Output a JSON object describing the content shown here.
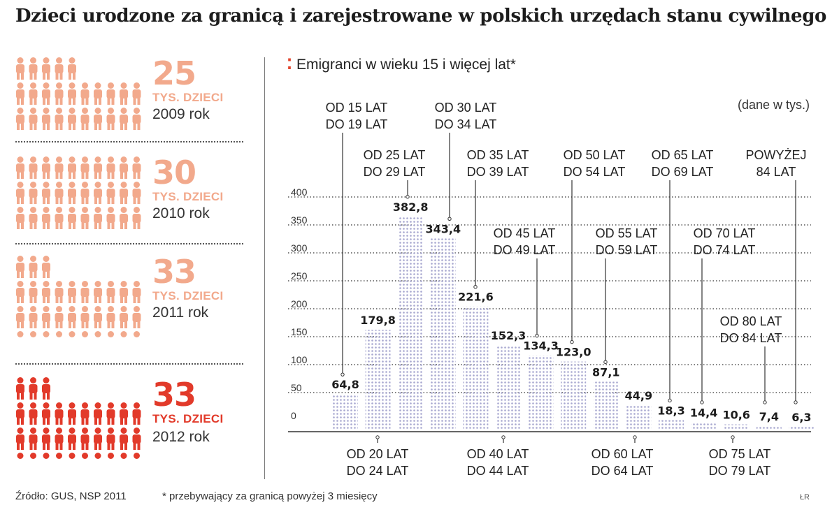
{
  "title": "Dzieci urodzone za granicą i zarejestrowane w polskich urzędach stanu cywilnego",
  "births": [
    {
      "number": "25",
      "label": "TYS. DZIECI",
      "year": "2009 rok",
      "value": 25,
      "color": "#f2a98c",
      "highlight": false
    },
    {
      "number": "30",
      "label": "TYS. DZIECI",
      "year": "2010 rok",
      "value": 30,
      "color": "#f2a98c",
      "highlight": false
    },
    {
      "number": "33",
      "label": "TYS. DZIECI",
      "year": "2011 rok",
      "value": 33,
      "color": "#f2a98c",
      "highlight": false
    },
    {
      "number": "33",
      "label": "TYS. DZIECI",
      "year": "2012 rok",
      "value": 33,
      "color": "#e23a2a",
      "highlight": true
    }
  ],
  "chart_subtitle": "Emigranci w wieku 15 i więcej lat*",
  "unit_note": "(dane w tys.)",
  "footer": {
    "source": "Źródło: GUS, NSP 2011",
    "note": "* przebywający za granicą powyżej 3 miesięcy",
    "credit": "ŁR"
  },
  "colors": {
    "accent": "#e2452e",
    "bar": "#a8a8d0",
    "highlight_icon": "#e23a2a",
    "icon": "#f2a98c"
  },
  "chart_data": {
    "type": "bar",
    "title": "Emigranci w wieku 15 i więcej lat*",
    "ylabel": "",
    "xlabel": "",
    "ylim": [
      0,
      400
    ],
    "yticks": [
      0,
      50,
      100,
      150,
      200,
      250,
      300,
      350,
      400
    ],
    "grid": true,
    "categories": [
      [
        "OD 15 LAT",
        "DO 19 LAT"
      ],
      [
        "OD 20 LAT",
        "DO 24 LAT"
      ],
      [
        "OD 25 LAT",
        "DO 29 LAT"
      ],
      [
        "OD 30 LAT",
        "DO 34 LAT"
      ],
      [
        "OD 35 LAT",
        "DO 39 LAT"
      ],
      [
        "OD 40 LAT",
        "DO 44 LAT"
      ],
      [
        "OD 45 LAT",
        "DO 49 LAT"
      ],
      [
        "OD 50 LAT",
        "DO 54 LAT"
      ],
      [
        "OD 55 LAT",
        "DO 59 LAT"
      ],
      [
        "OD 60 LAT",
        "DO 64 LAT"
      ],
      [
        "OD 65 LAT",
        "DO 69 LAT"
      ],
      [
        "OD 70 LAT",
        "DO 74 LAT"
      ],
      [
        "OD 75 LAT",
        "DO 79 LAT"
      ],
      [
        "OD 80 LAT",
        "DO 84 LAT"
      ],
      [
        "POWYŻEJ",
        "84 LAT"
      ]
    ],
    "values": [
      64.8,
      179.8,
      382.8,
      343.4,
      221.6,
      152.3,
      134.3,
      123.0,
      87.1,
      44.9,
      18.3,
      14.4,
      10.6,
      7.4,
      6.3
    ],
    "value_labels": [
      "64,8",
      "179,8",
      "382,8",
      "343,4",
      "221,6",
      "152,3",
      "134,3",
      "123,0",
      "87,1",
      "44,9",
      "18,3",
      "14,4",
      "10,6",
      "7,4",
      "6,3"
    ]
  }
}
